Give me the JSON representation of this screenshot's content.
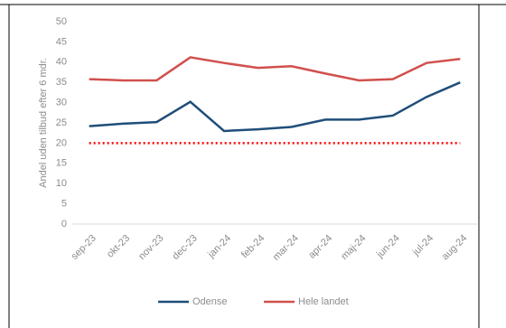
{
  "chart_data": {
    "type": "line",
    "y_label": "Andel uden tilbud efter 6 mdr.",
    "categories": [
      "sep-23",
      "okt-23",
      "nov-23",
      "dec-23",
      "jan-24",
      "feb-24",
      "mar-24",
      "apr-24",
      "maj-24",
      "jun-24",
      "jul-24",
      "aug-24"
    ],
    "series": [
      {
        "name": "Odense",
        "color": "#1f4e79",
        "values": [
          24.2,
          24.8,
          25.2,
          30.2,
          23,
          23.4,
          24,
          25.8,
          25.8,
          26.8,
          31.4,
          35
        ]
      },
      {
        "name": "Hele landet",
        "color": "#d0504d",
        "values": [
          35.8,
          35.5,
          35.5,
          41.2,
          39.8,
          38.6,
          39,
          37.2,
          35.5,
          35.8,
          39.8,
          40.8
        ]
      }
    ],
    "target": 20,
    "target_color": "#ff0000",
    "ylim": [
      0,
      50
    ],
    "yticks": [
      0,
      5,
      10,
      15,
      20,
      25,
      30,
      35,
      40,
      45,
      50
    ]
  }
}
